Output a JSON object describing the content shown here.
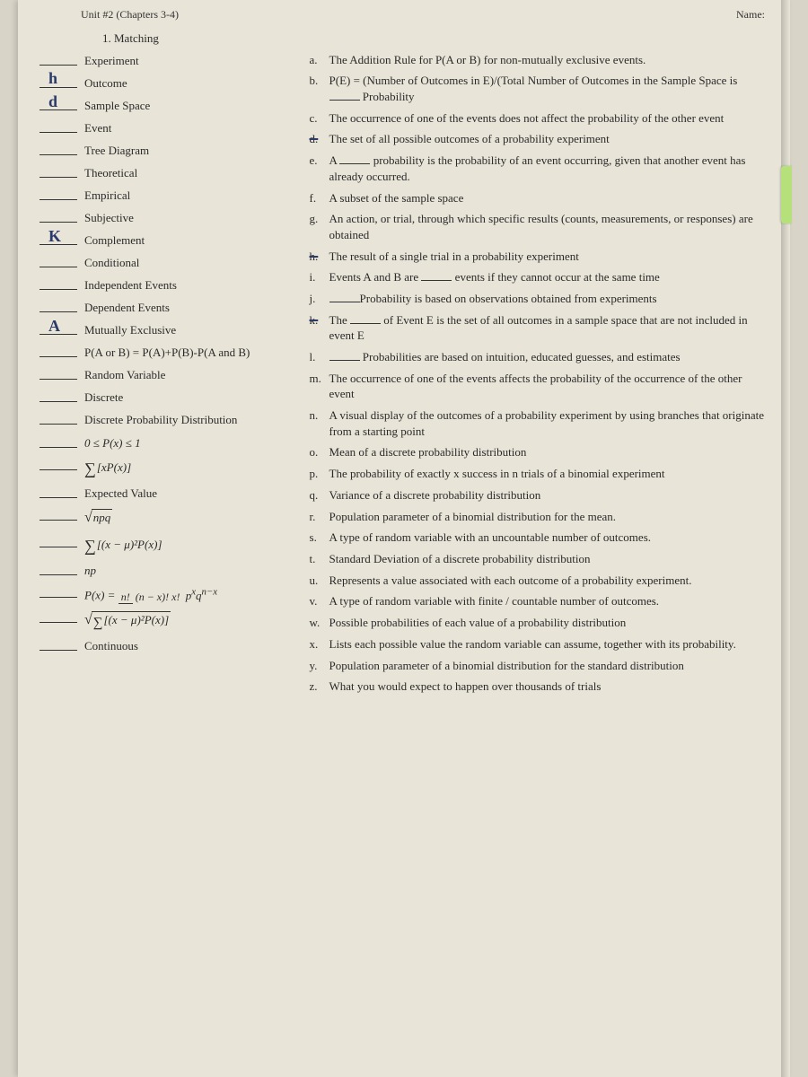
{
  "header": {
    "unit": "Unit #2 (Chapters 3-4)",
    "name_label": "Name:"
  },
  "section": "1.  Matching",
  "left_terms": [
    {
      "answer": "",
      "text": "Experiment"
    },
    {
      "answer": "h",
      "text": "Outcome"
    },
    {
      "answer": "d",
      "text": "Sample Space"
    },
    {
      "answer": "",
      "text": "Event"
    },
    {
      "answer": "",
      "text": "Tree Diagram"
    },
    {
      "answer": "",
      "text": "Theoretical"
    },
    {
      "answer": "",
      "text": "Empirical"
    },
    {
      "answer": "",
      "text": "Subjective"
    },
    {
      "answer": "K",
      "text": "Complement"
    },
    {
      "answer": "",
      "text": "Conditional"
    },
    {
      "answer": "",
      "text": "Independent Events"
    },
    {
      "answer": "",
      "text": "Dependent Events"
    },
    {
      "answer": "A",
      "text": "Mutually Exclusive"
    },
    {
      "answer": "",
      "text": "P(A or B) = P(A)+P(B)-P(A and B)"
    },
    {
      "answer": "",
      "text": "Random Variable"
    },
    {
      "answer": "",
      "text": "Discrete"
    },
    {
      "answer": "",
      "text": "Discrete Probability Distribution"
    },
    {
      "answer": "",
      "text": "0 ≤ P(x) ≤ 1",
      "formula": true
    },
    {
      "answer": "",
      "html": "sumxP",
      "formula": true
    },
    {
      "answer": "",
      "text": "Expected Value"
    },
    {
      "answer": "",
      "html": "sqrtnpq",
      "formula": true
    },
    {
      "answer": "",
      "html": "sumvar",
      "formula": true
    },
    {
      "answer": "",
      "text": "np",
      "formula": true
    },
    {
      "answer": "",
      "html": "binom",
      "formula": true
    },
    {
      "answer": "",
      "html": "sqrtsumvar",
      "formula": true
    },
    {
      "answer": "",
      "text": "Continuous"
    }
  ],
  "definitions": [
    {
      "l": "a.",
      "t": "The Addition Rule for P(A or B) for non-mutually exclusive events."
    },
    {
      "l": "b.",
      "t": "P(E) = (Number of Outcomes in E)/(Total Number of Outcomes in the Sample Space is ",
      "blank": true,
      "t2": " Probability"
    },
    {
      "l": "c.",
      "t": "The occurrence of one of the events does not affect the probability of the other event"
    },
    {
      "l": "d.",
      "strike": true,
      "t": "The set of all possible outcomes of a probability experiment"
    },
    {
      "l": "e.",
      "t": "A ",
      "blank": true,
      "t2": " probability is the probability of an event occurring, given that another event has already occurred."
    },
    {
      "l": "f.",
      "t": "A subset of the sample space"
    },
    {
      "l": "g.",
      "t": "An action, or trial, through which specific results (counts, measurements, or responses) are obtained"
    },
    {
      "l": "h.",
      "strike": true,
      "t": "The result of a single trial in a probability experiment"
    },
    {
      "l": "i.",
      "t": "Events A and B are ",
      "blank": true,
      "t2": " events if they cannot occur at the same time"
    },
    {
      "l": "j.",
      "t": "",
      "blank": true,
      "t2": "Probability is based on observations obtained from experiments"
    },
    {
      "l": "k.",
      "strike": true,
      "t": "The ",
      "blank": true,
      "t2": " of Event E is the set of all outcomes in a sample space that are not included in event E"
    },
    {
      "l": "l.",
      "t": "",
      "blank": true,
      "t2": " Probabilities are based on intuition, educated guesses, and estimates"
    },
    {
      "l": "m.",
      "t": "The occurrence of one of the events affects the probability of the occurrence of the other event"
    },
    {
      "l": "n.",
      "t": "A visual display of the outcomes of a probability experiment by using branches that originate from a starting point"
    },
    {
      "l": "o.",
      "t": "Mean of a discrete probability distribution"
    },
    {
      "l": "p.",
      "t": "The probability of exactly x success in n trials of a binomial experiment"
    },
    {
      "l": "q.",
      "t": "Variance of a discrete probability distribution"
    },
    {
      "l": "r.",
      "t": "Population parameter of a binomial distribution for the mean."
    },
    {
      "l": "s.",
      "t": "A type of random variable with an uncountable number of outcomes."
    },
    {
      "l": "t.",
      "t": "Standard Deviation of a discrete probability distribution"
    },
    {
      "l": "u.",
      "t": "Represents a value associated with each outcome of a probability experiment."
    },
    {
      "l": "v.",
      "t": "A type of random variable with finite / countable number of outcomes."
    },
    {
      "l": "w.",
      "t": "Possible probabilities of each value of a probability distribution"
    },
    {
      "l": "x.",
      "t": "Lists each possible value the random variable can assume, together with its probability."
    },
    {
      "l": "y.",
      "t": "Population parameter of a binomial distribution for the standard distribution"
    },
    {
      "l": "z.",
      "t": "What you would expect to happen over thousands of trials"
    }
  ],
  "colors": {
    "background": "#d8d4c8",
    "paper": "#e8e4d8",
    "text": "#2a2a2a",
    "handwriting": "#2a3a6a",
    "tab": "#b6e07a"
  }
}
